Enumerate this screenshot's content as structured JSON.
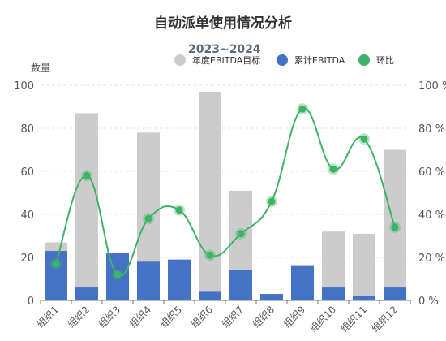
{
  "chart_data": {
    "type": "bar",
    "title": "自动派单使用情况分析",
    "subtitle": "2023~2024",
    "ylabel": "数量",
    "categories": [
      "组织1",
      "组织2",
      "组织3",
      "组织4",
      "组织5",
      "组织6",
      "组织7",
      "组织8",
      "组织9",
      "组织10",
      "组织11",
      "组织12"
    ],
    "series": [
      {
        "name": "年度EBITDA目标",
        "kind": "bar",
        "color": "#cccccc",
        "values": [
          27,
          87,
          0,
          78,
          0,
          97,
          51,
          0,
          0,
          32,
          31,
          70
        ]
      },
      {
        "name": "累计EBITDA",
        "kind": "bar",
        "color": "#4472c4",
        "values": [
          23,
          6,
          22,
          18,
          19,
          4,
          14,
          3,
          16,
          6,
          2,
          6
        ]
      },
      {
        "name": "环比",
        "kind": "line",
        "axis": "right",
        "smooth": true,
        "color": "#3cb464",
        "values": [
          17,
          58,
          12,
          38,
          42,
          21,
          31,
          46,
          89,
          61,
          75,
          34
        ]
      }
    ],
    "y_left": {
      "min": 0,
      "max": 100,
      "ticks": [
        "0",
        "20",
        "40",
        "60",
        "80",
        "100"
      ]
    },
    "y_right": {
      "min": 0,
      "max": 100,
      "ticks": [
        "0 %",
        "20 %",
        "40 %",
        "60 %",
        "80 %",
        "100 %"
      ]
    },
    "grid": true,
    "legend_position": "top-right"
  }
}
